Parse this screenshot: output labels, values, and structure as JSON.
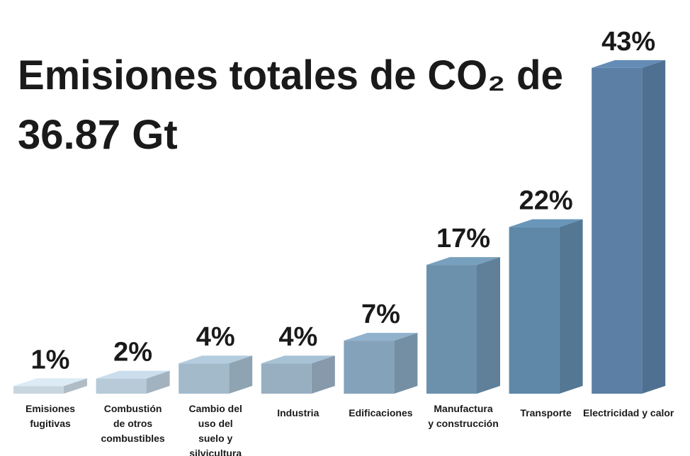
{
  "chart_data": {
    "type": "bar3d",
    "title": [
      "Emisiones totales de CO₂ de",
      "36.87 Gt"
    ],
    "categories": [
      [
        "Emisiones",
        "fugitivas"
      ],
      [
        "Combustión",
        "de otros",
        "combustibles"
      ],
      [
        "Cambio del",
        "uso del",
        "suelo y",
        "silvicultura"
      ],
      [
        "Industria"
      ],
      [
        "Edificaciones"
      ],
      [
        "Manufactura",
        "y construcción"
      ],
      [
        "Transporte"
      ],
      [
        "Electricidad y calor"
      ]
    ],
    "values": [
      1,
      2,
      4,
      4,
      7,
      17,
      22,
      43
    ],
    "value_labels": [
      "1%",
      "2%",
      "4%",
      "4%",
      "7%",
      "17%",
      "22%",
      "43%"
    ],
    "colors": [
      "#c8d6e0",
      "#b8cad8",
      "#a3bacb",
      "#98afc2",
      "#84a2ba",
      "#6c91ad",
      "#5f88a8",
      "#5b7fa5"
    ]
  }
}
